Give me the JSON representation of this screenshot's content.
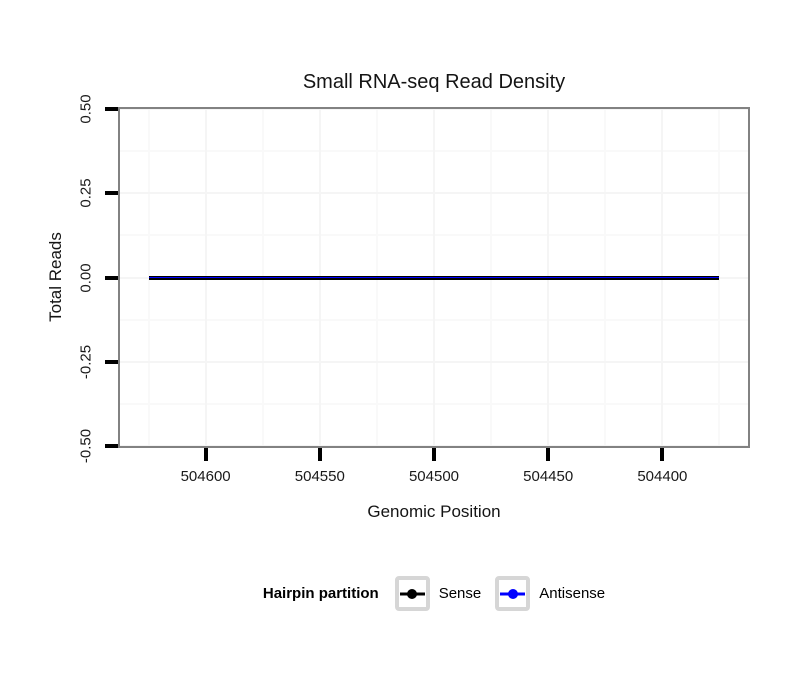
{
  "figure": {
    "background": "#FFFFFF"
  },
  "chart_data": {
    "type": "line",
    "title": "Small RNA-seq Read Density",
    "xlabel": "Genomic Position",
    "ylabel": "Total Reads",
    "grid": true,
    "x_axis": {
      "reversed": true,
      "lim": [
        504637.5,
        504362.5
      ],
      "ticks": [
        504600,
        504550,
        504500,
        504450,
        504400
      ],
      "tick_labels": [
        "504600",
        "504550",
        "504500",
        "504450",
        "504400"
      ],
      "minor_ticks": [
        504625,
        504575,
        504525,
        504475,
        504425,
        504375
      ]
    },
    "y_axis": {
      "lim": [
        -0.5,
        0.5
      ],
      "ticks": [
        0.5,
        0.25,
        0,
        -0.25,
        -0.5
      ],
      "tick_labels": [
        "0.50",
        "0.25",
        "0.00",
        "-0.25",
        "-0.50"
      ],
      "minor_ticks": [
        0.375,
        0.125,
        -0.125,
        -0.375
      ]
    },
    "series": [
      {
        "name": "Sense",
        "color": "#000000",
        "x": [
          504625,
          504375
        ],
        "y": [
          0,
          0
        ]
      },
      {
        "name": "Antisense",
        "color": "#0000FF",
        "x": [
          504625,
          504375
        ],
        "y": [
          0,
          0
        ]
      }
    ],
    "legend": {
      "title": "Hairpin partition",
      "position": "bottom",
      "entries": [
        {
          "label": "Sense",
          "color": "#000000"
        },
        {
          "label": "Antisense",
          "color": "#0000FF"
        }
      ]
    }
  },
  "colors": {
    "panel_border": "#828282",
    "grid_major": "#F5F5F5",
    "grid_minor": "#F9F9F9",
    "tick_mark": "#000000",
    "legend_key_border": "#D6D6D6",
    "legend_key_bg": "#FFFFFF"
  }
}
